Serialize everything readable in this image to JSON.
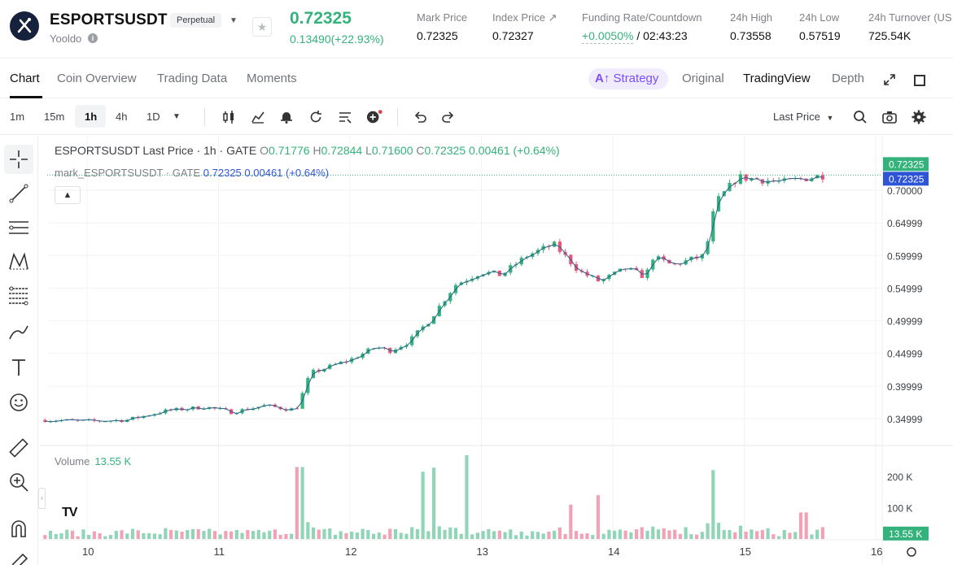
{
  "header": {
    "symbol": "ESPORTSUSDT",
    "badge": "Perpetual",
    "sub_name": "Yooldo",
    "last_price": "0.72325",
    "change": "0.13490(+22.93%)",
    "accent_up": "#34b27b",
    "accent_down": "#e8567a",
    "stats": [
      {
        "label": "Mark Price",
        "value": "0.72325"
      },
      {
        "label": "Index Price ↗",
        "value": "0.72327"
      },
      {
        "label": "Funding Rate/Countdown",
        "value_rate": "+0.0050%",
        "value_time": " / 02:43:23"
      },
      {
        "label": "24h High",
        "value": "0.73558"
      },
      {
        "label": "24h Low",
        "value": "0.57519"
      },
      {
        "label": "24h Turnover (US",
        "value": "725.54K"
      }
    ]
  },
  "tabs": {
    "items": [
      "Chart",
      "Coin Overview",
      "Trading Data",
      "Moments"
    ],
    "strategy": "Strategy",
    "views": [
      "Original",
      "TradingView",
      "Depth"
    ]
  },
  "toolbar": {
    "timeframes": [
      "1m",
      "15m",
      "1h",
      "4h",
      "1D"
    ],
    "active_timeframe": "1h",
    "price_type": "Last Price"
  },
  "legend": {
    "title": "ESPORTSUSDT Last Price · 1h · GATE",
    "o_label": "O",
    "o": "0.71776",
    "h_label": "H",
    "h": "0.72844",
    "l_label": "L",
    "l": "0.71600",
    "c_label": "C",
    "c": "0.72325",
    "chg": "0.00461 (+0.64%)",
    "mark_title": "mark_ESPORTSUSDT · GATE",
    "mark_price": "0.72325",
    "mark_chg": "0.00461 (+0.64%)"
  },
  "volume_legend": {
    "label": "Volume",
    "value": "13.55 K"
  },
  "chart_data": {
    "type": "candlestick",
    "price_axis": [
      "0.70000",
      "0.64999",
      "0.59999",
      "0.54999",
      "0.49999",
      "0.44999",
      "0.39999",
      "0.34999"
    ],
    "price_axis_values": [
      0.7,
      0.64999,
      0.59999,
      0.54999,
      0.49999,
      0.44999,
      0.39999,
      0.34999
    ],
    "price_tags": [
      "0.72325",
      "0.72325"
    ],
    "price_tag_value": 0.72325,
    "volume_axis": [
      "200 K",
      "100 K"
    ],
    "volume_axis_values": [
      200000,
      100000
    ],
    "volume_tag": "13.55 K",
    "volume_tag_value": 13550,
    "x_axis": [
      "10",
      "11",
      "12",
      "13",
      "14",
      "15",
      "16"
    ],
    "anchors": [
      {
        "day": 9.68,
        "price": 0.348
      },
      {
        "day": 10.0,
        "price": 0.346
      },
      {
        "day": 10.3,
        "price": 0.348
      },
      {
        "day": 10.6,
        "price": 0.362
      },
      {
        "day": 10.9,
        "price": 0.368
      },
      {
        "day": 11.1,
        "price": 0.36
      },
      {
        "day": 11.35,
        "price": 0.37
      },
      {
        "day": 11.55,
        "price": 0.364
      },
      {
        "day": 11.6,
        "price": 0.368
      },
      {
        "day": 11.7,
        "price": 0.42
      },
      {
        "day": 12.0,
        "price": 0.44
      },
      {
        "day": 12.2,
        "price": 0.46
      },
      {
        "day": 12.3,
        "price": 0.454
      },
      {
        "day": 12.45,
        "price": 0.468
      },
      {
        "day": 12.6,
        "price": 0.5
      },
      {
        "day": 12.8,
        "price": 0.555
      },
      {
        "day": 13.0,
        "price": 0.575
      },
      {
        "day": 13.15,
        "price": 0.57
      },
      {
        "day": 13.35,
        "price": 0.6
      },
      {
        "day": 13.55,
        "price": 0.617
      },
      {
        "day": 13.75,
        "price": 0.575
      },
      {
        "day": 13.9,
        "price": 0.56
      },
      {
        "day": 14.1,
        "price": 0.58
      },
      {
        "day": 14.25,
        "price": 0.567
      },
      {
        "day": 14.3,
        "price": 0.598
      },
      {
        "day": 14.45,
        "price": 0.585
      },
      {
        "day": 14.7,
        "price": 0.6
      },
      {
        "day": 14.78,
        "price": 0.68
      },
      {
        "day": 14.95,
        "price": 0.72
      },
      {
        "day": 15.1,
        "price": 0.717
      },
      {
        "day": 15.3,
        "price": 0.712
      },
      {
        "day": 15.45,
        "price": 0.718
      },
      {
        "day": 15.6,
        "price": 0.723
      }
    ],
    "volume_spikes": [
      {
        "day": 11.62,
        "volume": 230000
      },
      {
        "day": 12.55,
        "volume": 215000
      },
      {
        "day": 12.65,
        "volume": 228000
      },
      {
        "day": 12.88,
        "volume": 268000
      },
      {
        "day": 13.68,
        "volume": 110000
      },
      {
        "day": 13.88,
        "volume": 140000
      },
      {
        "day": 14.75,
        "volume": 220000
      },
      {
        "day": 15.45,
        "volume": 85000
      }
    ],
    "ylim": [
      0.3,
      0.75
    ],
    "volume_max": 270000,
    "xlim": [
      9.68,
      16.0
    ]
  }
}
